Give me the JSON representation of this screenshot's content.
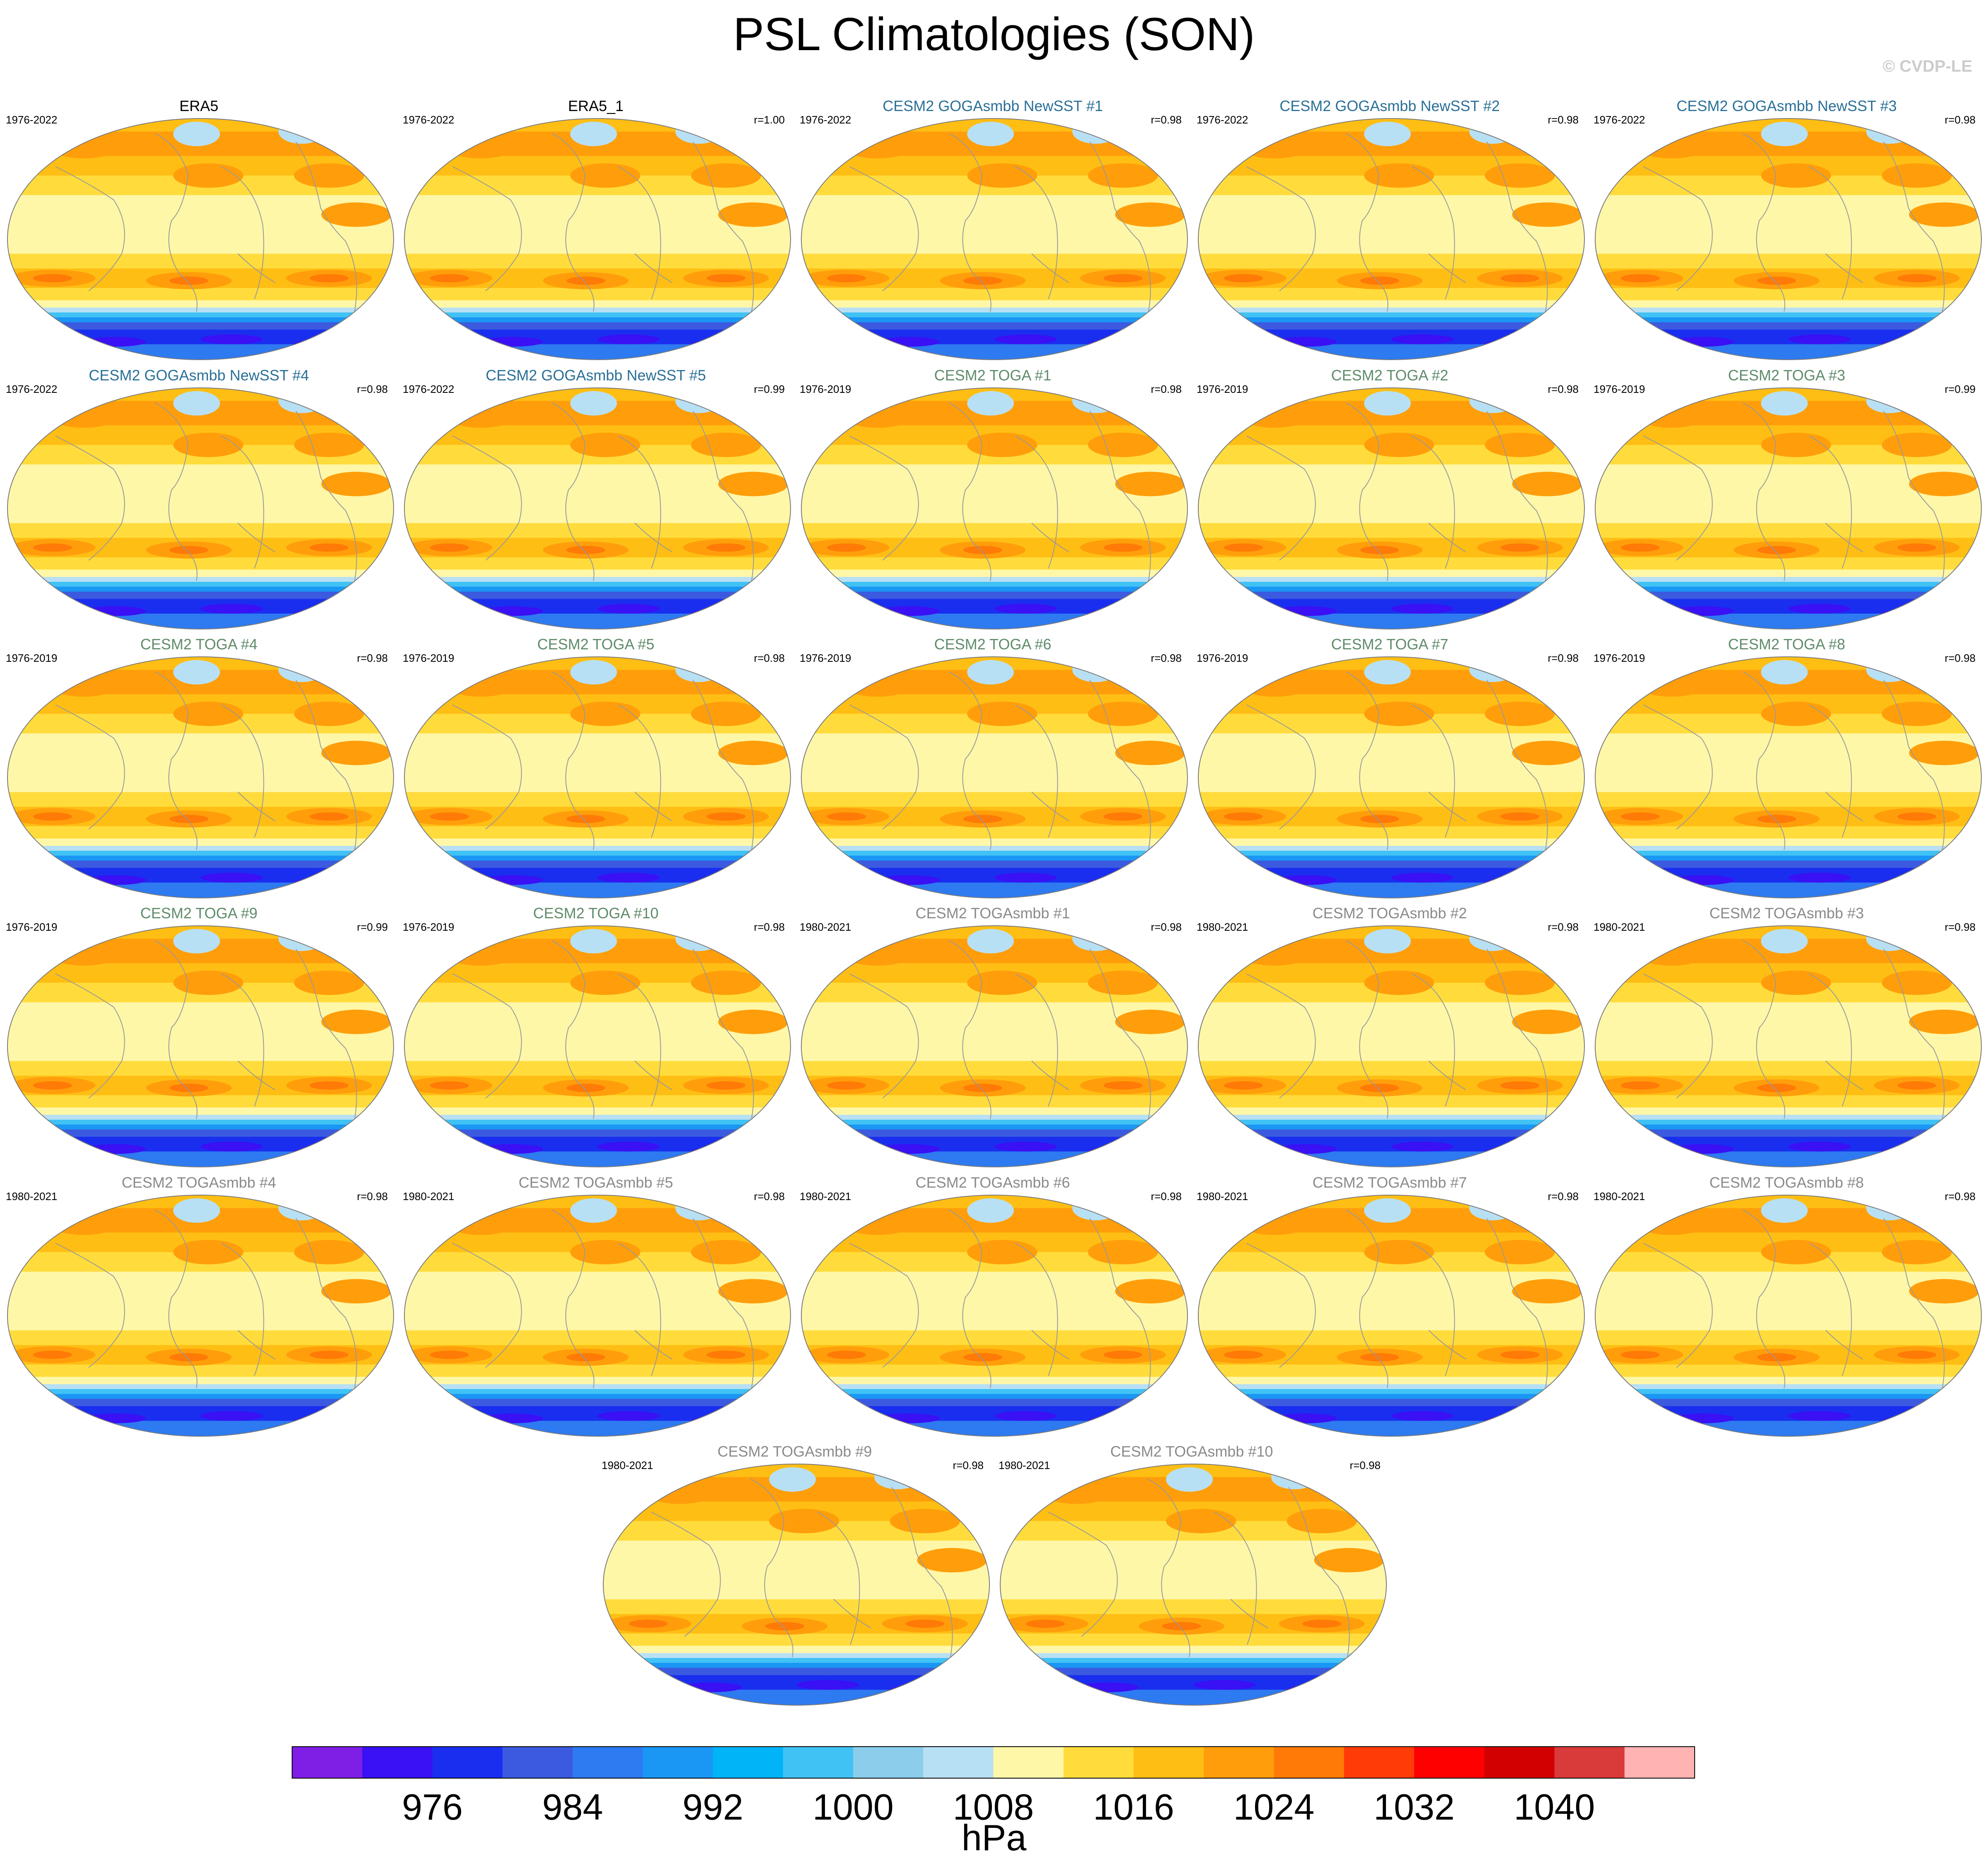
{
  "title": "PSL Climatologies (SON)",
  "watermark": "© CVDP-LE",
  "chart_data": {
    "type": "heatmap",
    "title": "PSL Climatologies (SON)",
    "panels": [
      {
        "name": "ERA5",
        "years": "1976-2022",
        "r": ""
      },
      {
        "name": "ERA5_1",
        "years": "1976-2022",
        "r": "r=1.00"
      },
      {
        "name": "CESM2 GOGAsmbb NewSST #1",
        "years": "1976-2022",
        "r": "r=0.98"
      },
      {
        "name": "CESM2 GOGAsmbb NewSST #2",
        "years": "1976-2022",
        "r": "r=0.98"
      },
      {
        "name": "CESM2 GOGAsmbb NewSST #3",
        "years": "1976-2022",
        "r": "r=0.98"
      },
      {
        "name": "CESM2 GOGAsmbb NewSST #4",
        "years": "1976-2022",
        "r": "r=0.98"
      },
      {
        "name": "CESM2 GOGAsmbb NewSST #5",
        "years": "1976-2022",
        "r": "r=0.99"
      },
      {
        "name": "CESM2 TOGA #1",
        "years": "1976-2019",
        "r": "r=0.98"
      },
      {
        "name": "CESM2 TOGA #2",
        "years": "1976-2019",
        "r": "r=0.98"
      },
      {
        "name": "CESM2 TOGA #3",
        "years": "1976-2019",
        "r": "r=0.99"
      },
      {
        "name": "CESM2 TOGA #4",
        "years": "1976-2019",
        "r": "r=0.98"
      },
      {
        "name": "CESM2 TOGA #5",
        "years": "1976-2019",
        "r": "r=0.98"
      },
      {
        "name": "CESM2 TOGA #6",
        "years": "1976-2019",
        "r": "r=0.98"
      },
      {
        "name": "CESM2 TOGA #7",
        "years": "1976-2019",
        "r": "r=0.98"
      },
      {
        "name": "CESM2 TOGA #8",
        "years": "1976-2019",
        "r": "r=0.98"
      },
      {
        "name": "CESM2 TOGA #9",
        "years": "1976-2019",
        "r": "r=0.99"
      },
      {
        "name": "CESM2 TOGA #10",
        "years": "1976-2019",
        "r": "r=0.98"
      },
      {
        "name": "CESM2 TOGAsmbb #1",
        "years": "1980-2021",
        "r": "r=0.98"
      },
      {
        "name": "CESM2 TOGAsmbb #2",
        "years": "1980-2021",
        "r": "r=0.98"
      },
      {
        "name": "CESM2 TOGAsmbb #3",
        "years": "1980-2021",
        "r": "r=0.98"
      },
      {
        "name": "CESM2 TOGAsmbb #4",
        "years": "1980-2021",
        "r": "r=0.98"
      },
      {
        "name": "CESM2 TOGAsmbb #5",
        "years": "1980-2021",
        "r": "r=0.98"
      },
      {
        "name": "CESM2 TOGAsmbb #6",
        "years": "1980-2021",
        "r": "r=0.98"
      },
      {
        "name": "CESM2 TOGAsmbb #7",
        "years": "1980-2021",
        "r": "r=0.98"
      },
      {
        "name": "CESM2 TOGAsmbb #8",
        "years": "1980-2021",
        "r": "r=0.98"
      },
      {
        "name": "CESM2 TOGAsmbb #9",
        "years": "1980-2021",
        "r": "r=0.98"
      },
      {
        "name": "CESM2 TOGAsmbb #10",
        "years": "1980-2021",
        "r": "r=0.98"
      }
    ],
    "group_colors": {
      "obs": "#000000",
      "goga": "#2a6f97",
      "toga": "#5f8b6a",
      "togasmbb": "#8a8a8a"
    },
    "colorbar": {
      "unit": "hPa",
      "levels": [
        972,
        976,
        980,
        984,
        988,
        992,
        996,
        1000,
        1004,
        1008,
        1012,
        1016,
        1020,
        1024,
        1028,
        1032,
        1036,
        1040,
        1044
      ],
      "tick_labels": [
        "976",
        "984",
        "992",
        "1000",
        "1008",
        "1016",
        "1024",
        "1032",
        "1040"
      ],
      "colors": [
        "#7f1fe6",
        "#3a10f5",
        "#1a2ef0",
        "#3b5ae0",
        "#2e7af0",
        "#1a96f5",
        "#00b4f7",
        "#40c2f5",
        "#8ccdec",
        "#b8e0f4",
        "#fff7a8",
        "#ffdc3c",
        "#ffbe14",
        "#ff9e0a",
        "#ff7a06",
        "#ff3c08",
        "#ff0000",
        "#d20000",
        "#d93a3a",
        "#ffb3b3"
      ]
    }
  }
}
